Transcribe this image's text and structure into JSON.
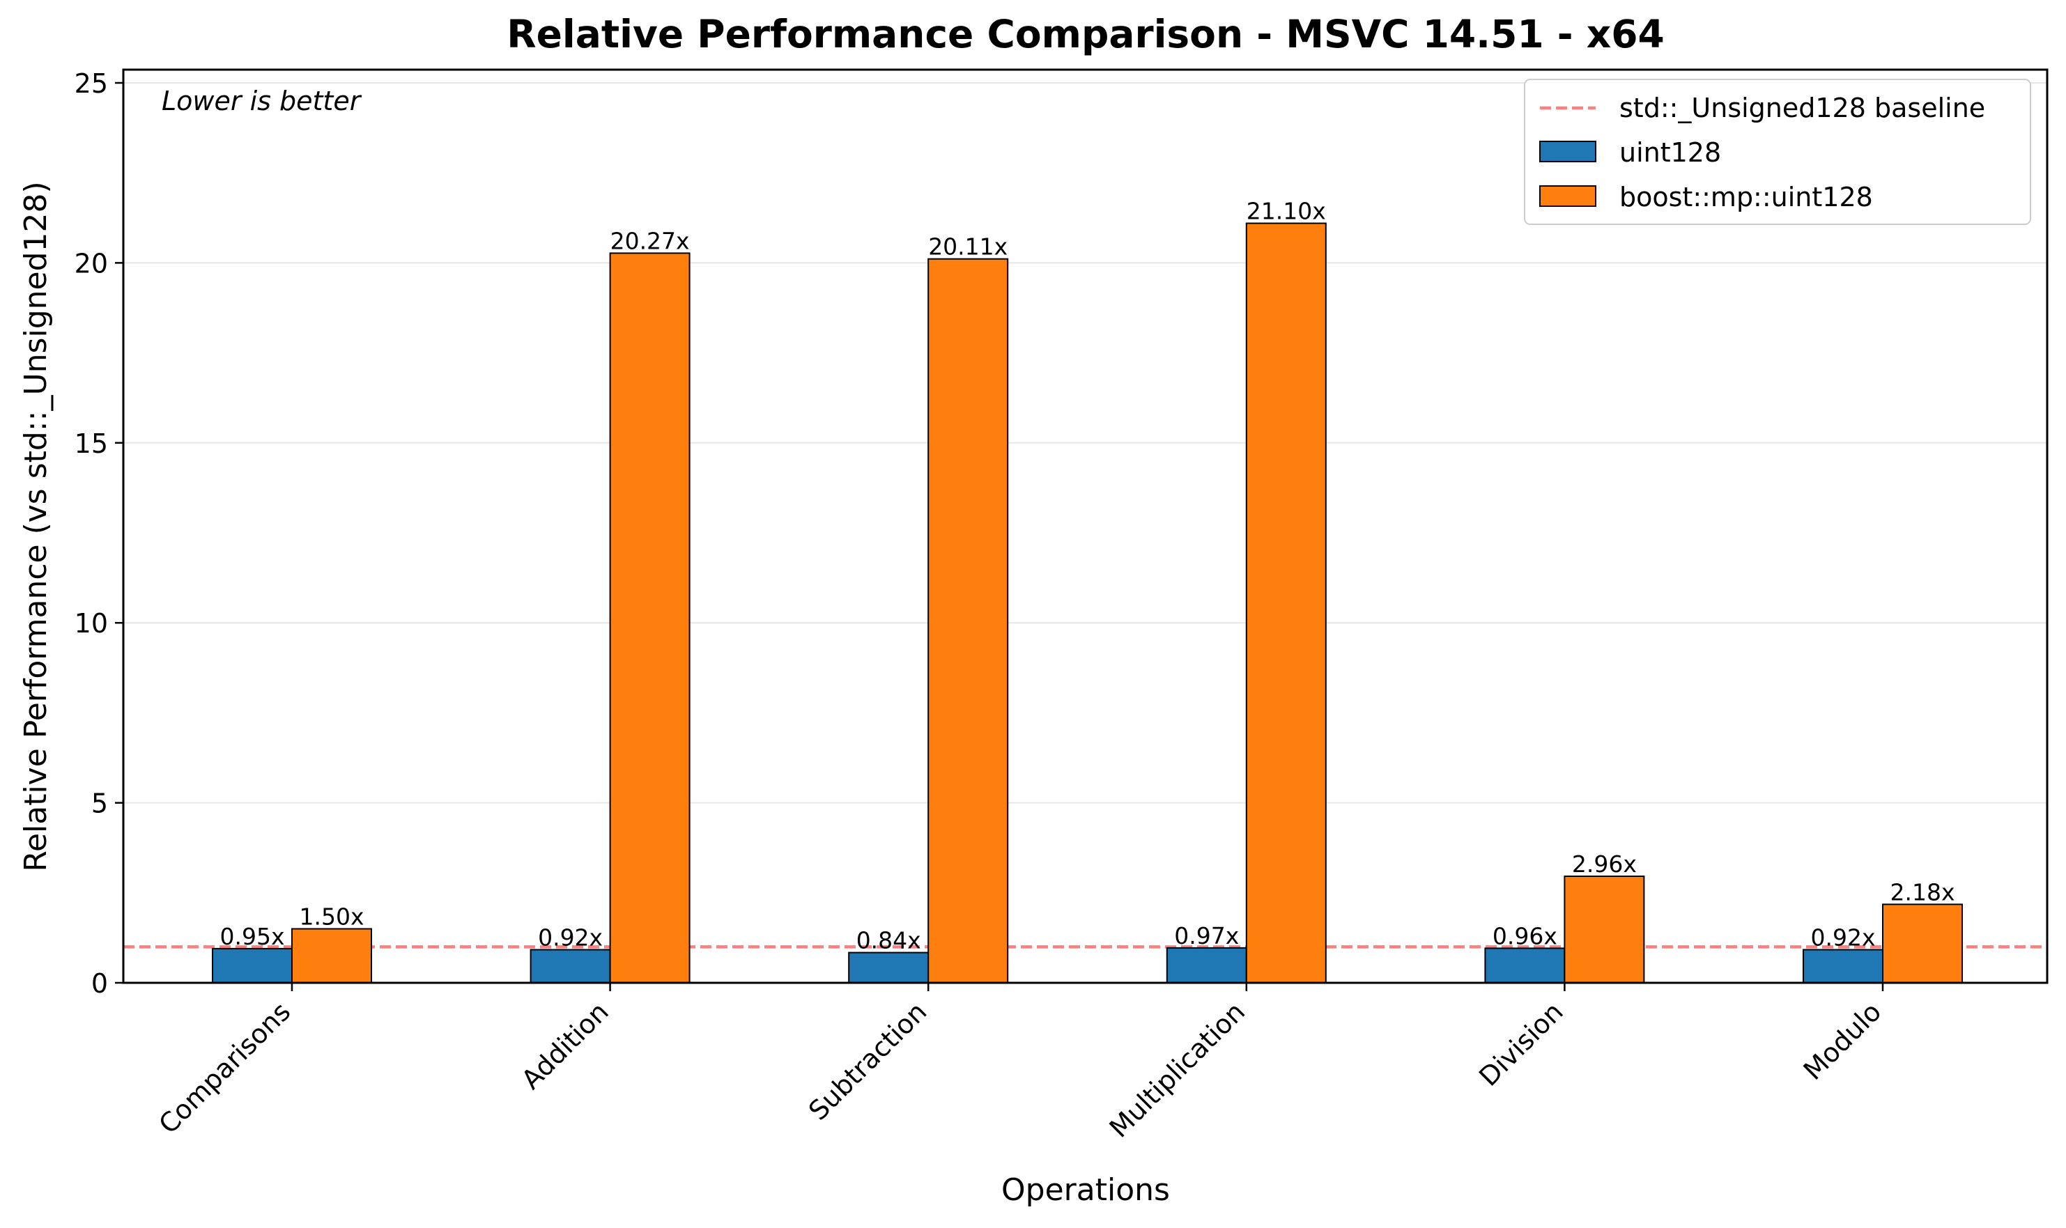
{
  "chart_data": {
    "type": "bar",
    "title": "Relative Performance Comparison - MSVC 14.51 - x64",
    "xlabel": "Operations",
    "ylabel": "Relative Performance (vs std::_Unsigned128)",
    "annotation": "Lower is better",
    "categories": [
      "Comparisons",
      "Addition",
      "Subtraction",
      "Multiplication",
      "Division",
      "Modulo"
    ],
    "ylim": [
      0,
      25
    ],
    "yticks": [
      0,
      5,
      10,
      15,
      20,
      25
    ],
    "grid": "horizontal",
    "legend_position": "top-right",
    "series": [
      {
        "name": "uint128",
        "color": "#1f77b4",
        "values": [
          0.95,
          0.92,
          0.84,
          0.97,
          0.96,
          0.92
        ],
        "labels": [
          "0.95x",
          "0.92x",
          "0.84x",
          "0.97x",
          "0.96x",
          "0.92x"
        ]
      },
      {
        "name": "boost::mp::uint128",
        "color": "#ff7f0e",
        "values": [
          1.5,
          20.27,
          20.11,
          21.1,
          2.96,
          2.18
        ],
        "labels": [
          "1.50x",
          "20.27x",
          "20.11x",
          "21.10x",
          "2.96x",
          "2.18x"
        ]
      }
    ],
    "baseline": {
      "name": "std::_Unsigned128 baseline",
      "value": 1.0,
      "color": "#ff0000"
    }
  }
}
